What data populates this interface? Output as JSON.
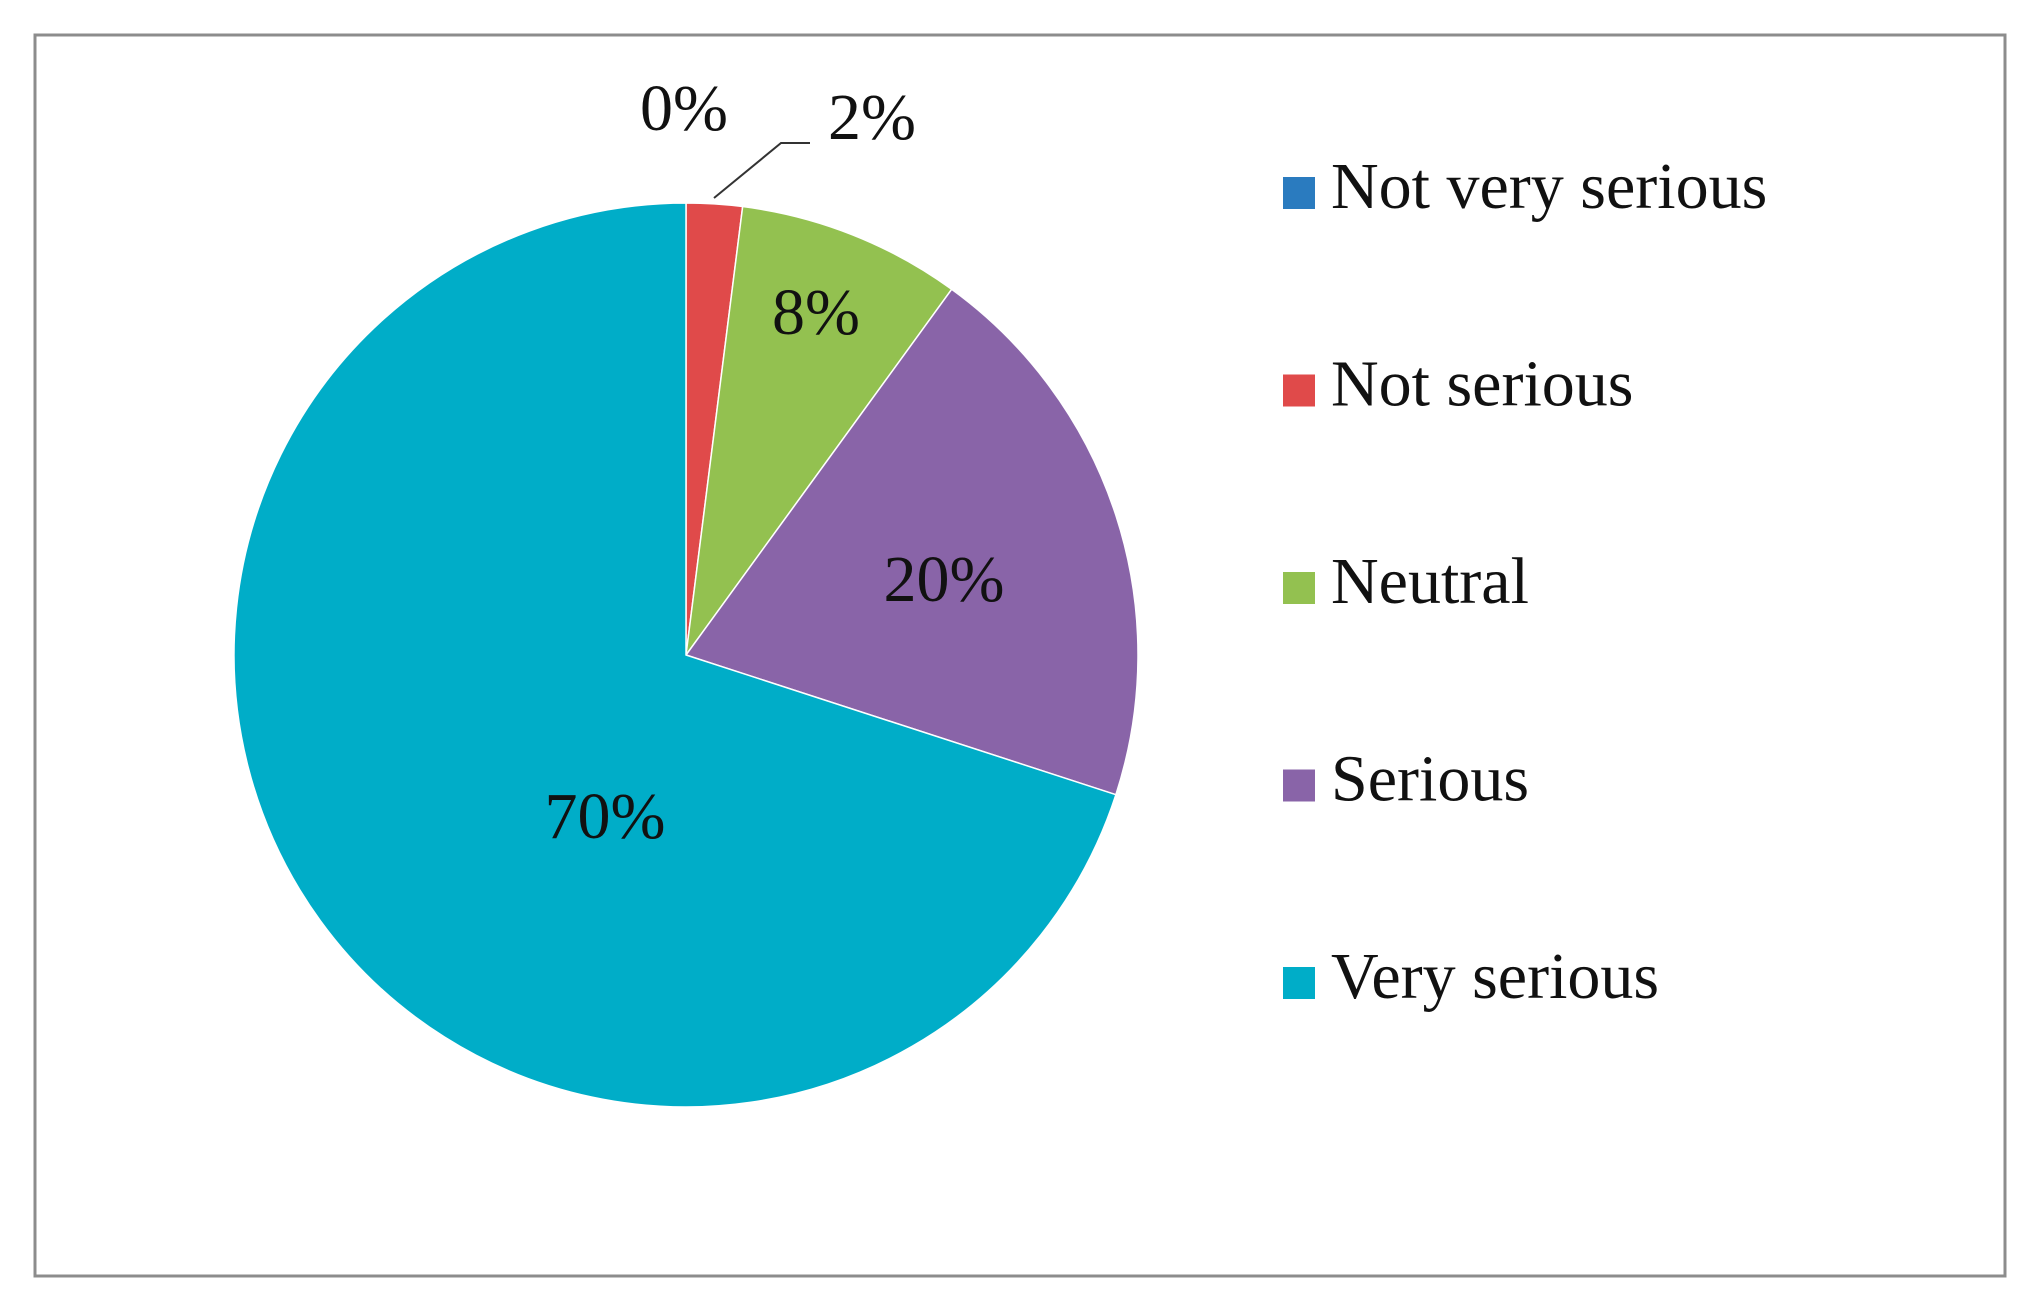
{
  "chart_data": {
    "type": "pie",
    "categories": [
      "Not very serious",
      "Not serious",
      "Neutral",
      "Serious",
      "Very serious"
    ],
    "values": [
      0,
      2,
      8,
      20,
      70
    ],
    "value_labels": [
      "0%",
      "2%",
      "8%",
      "20%",
      "70%"
    ],
    "colors": [
      "#2a7bbf",
      "#e04a4a",
      "#93c150",
      "#8964a8",
      "#00adc8"
    ],
    "legend": "right"
  }
}
